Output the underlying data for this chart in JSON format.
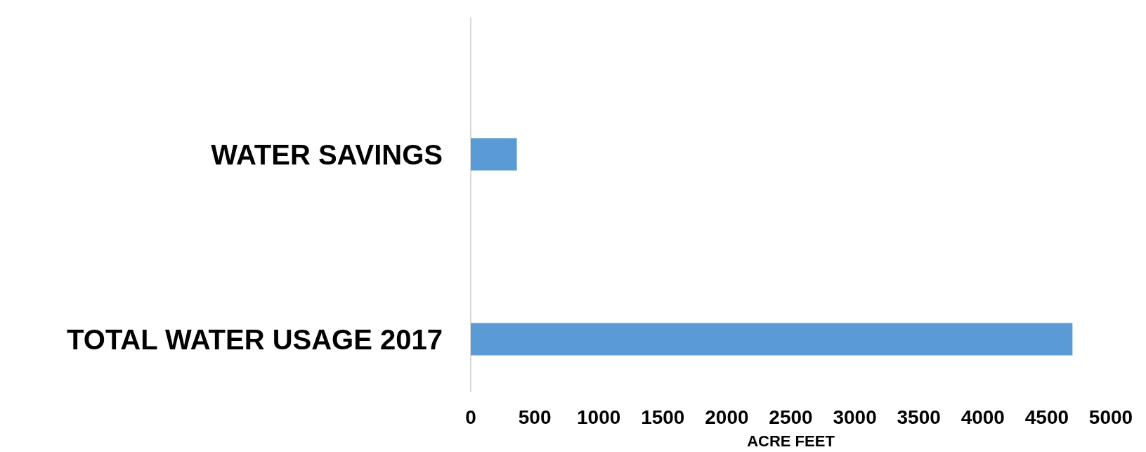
{
  "chart_data": {
    "type": "bar",
    "orientation": "horizontal",
    "categories": [
      "WATER SAVINGS",
      "TOTAL WATER USAGE 2017"
    ],
    "values": [
      360,
      4700
    ],
    "color": "#5b9bd5",
    "xlabel": "ACRE FEET",
    "xlim": [
      0,
      5000
    ],
    "xticks": [
      0,
      500,
      1000,
      1500,
      2000,
      2500,
      3000,
      3500,
      4000,
      4500,
      5000
    ],
    "grid": false
  }
}
